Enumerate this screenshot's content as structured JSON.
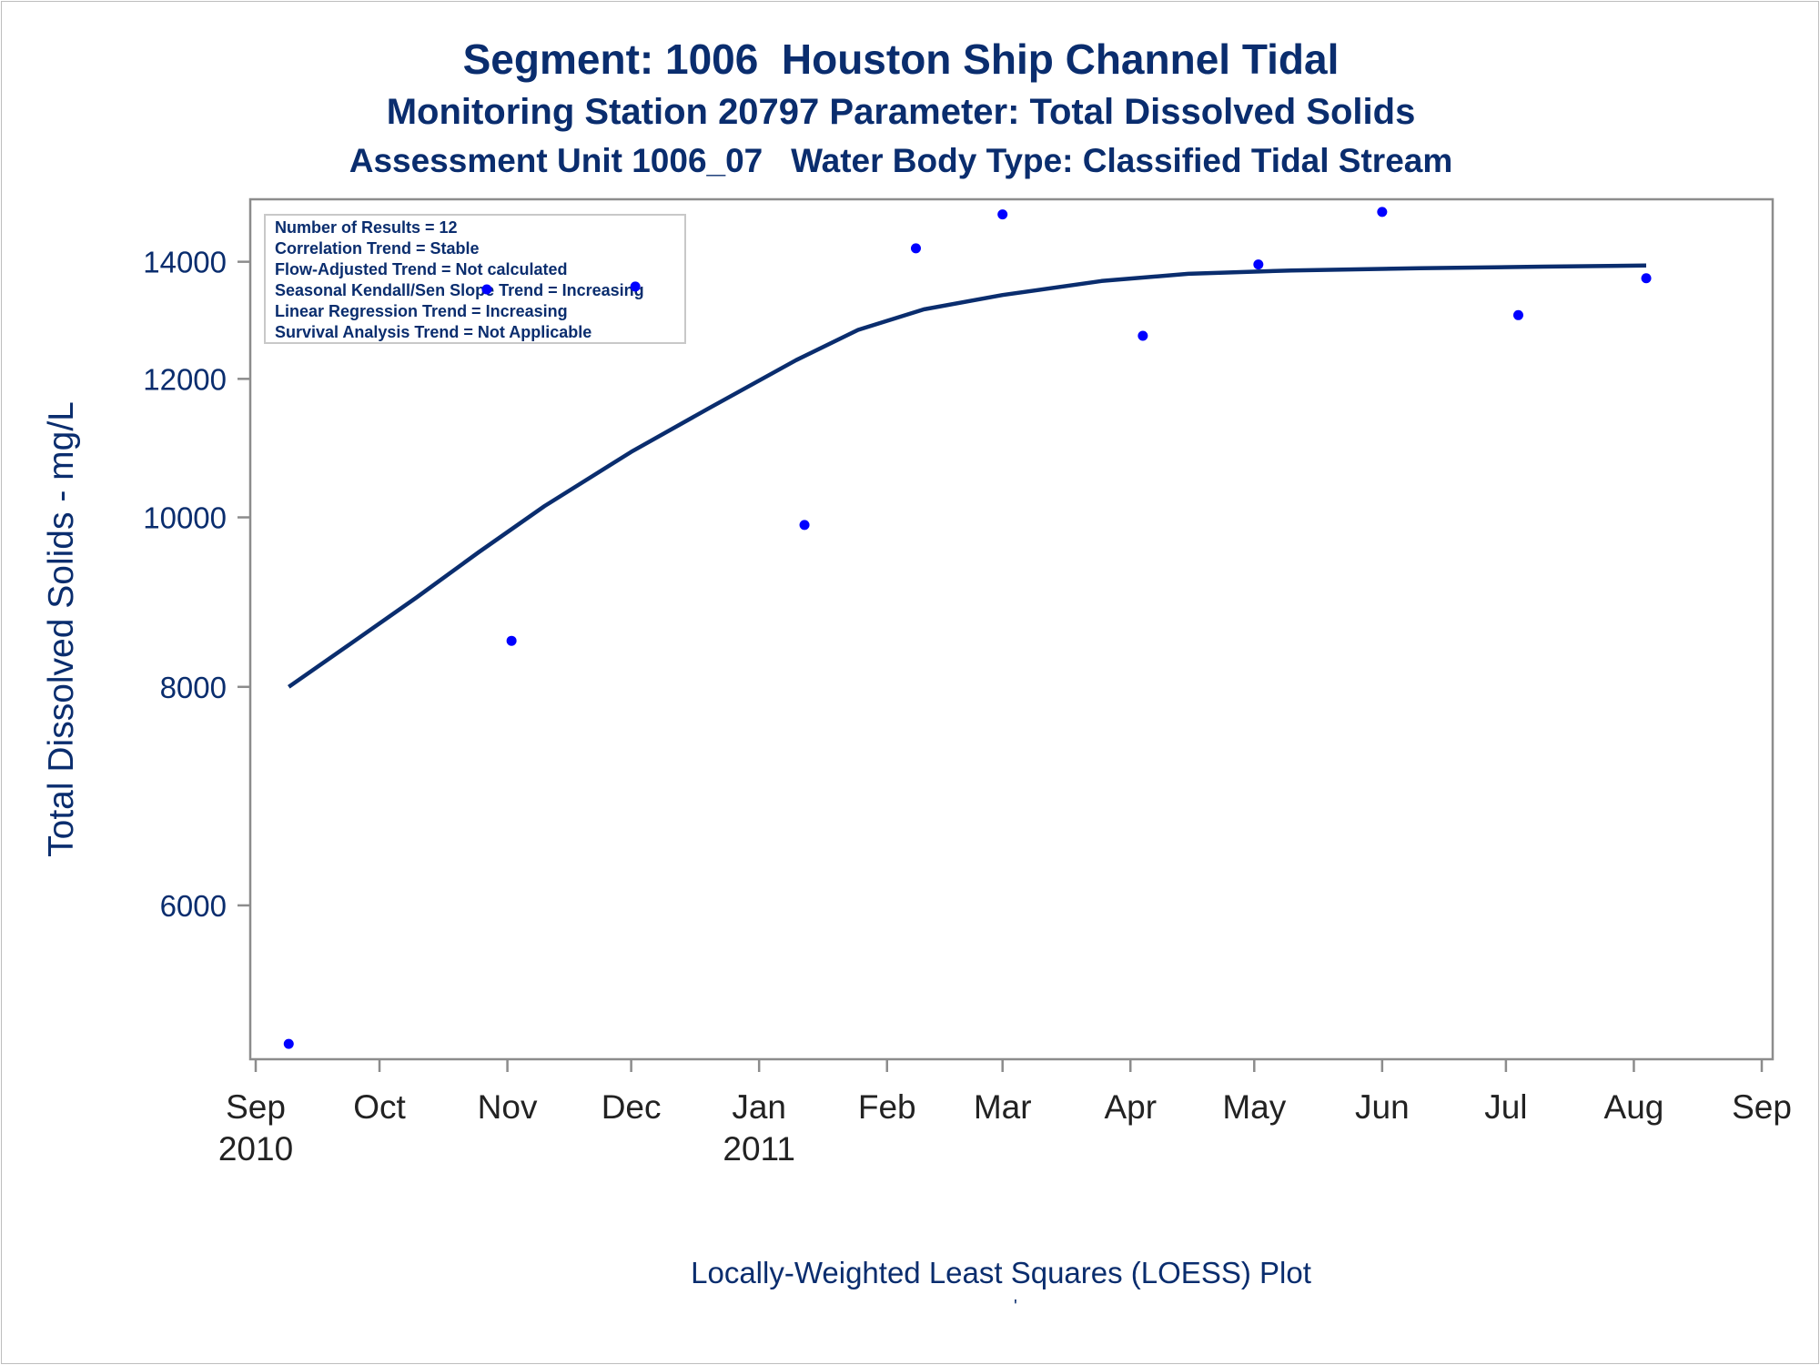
{
  "titles": {
    "line1": "Segment: 1006  Houston Ship Channel Tidal",
    "line2": "Monitoring Station 20797 Parameter: Total Dissolved Solids",
    "line3": "Assessment Unit 1006_07   Water Body Type: Classified Tidal Stream"
  },
  "footnote": "Locally-Weighted Least Squares (LOESS) Plot",
  "footnote_mark": "'",
  "colors": {
    "text": "#0a2d6e",
    "points": "#0000ff",
    "line": "#0a2d6e",
    "axis": "#8c8c8c"
  },
  "chart_data": {
    "type": "scatter",
    "ylabel": "Total Dissolved Solids - mg/L",
    "xlabel": "",
    "y_scale": "log",
    "ylim": [
      4900,
      15200
    ],
    "xlim": [
      "2010-09-01",
      "2011-09-01"
    ],
    "yticks": [
      6000,
      8000,
      10000,
      12000,
      14000
    ],
    "xticks": [
      {
        "date": "2010-09-01",
        "label": "Sep",
        "year": "2010"
      },
      {
        "date": "2010-10-01",
        "label": "Oct",
        "year": ""
      },
      {
        "date": "2010-11-01",
        "label": "Nov",
        "year": ""
      },
      {
        "date": "2010-12-01",
        "label": "Dec",
        "year": ""
      },
      {
        "date": "2011-01-01",
        "label": "Jan",
        "year": "2011"
      },
      {
        "date": "2011-02-01",
        "label": "Feb",
        "year": ""
      },
      {
        "date": "2011-03-01",
        "label": "Mar",
        "year": ""
      },
      {
        "date": "2011-04-01",
        "label": "Apr",
        "year": ""
      },
      {
        "date": "2011-05-01",
        "label": "May",
        "year": ""
      },
      {
        "date": "2011-06-01",
        "label": "Jun",
        "year": ""
      },
      {
        "date": "2011-07-01",
        "label": "Jul",
        "year": ""
      },
      {
        "date": "2011-08-01",
        "label": "Aug",
        "year": ""
      },
      {
        "date": "2011-09-01",
        "label": "Sep",
        "year": ""
      }
    ],
    "points": [
      {
        "x": "2010-09-09",
        "y": 5000
      },
      {
        "x": "2010-10-27",
        "y": 13500
      },
      {
        "x": "2010-11-02",
        "y": 8500
      },
      {
        "x": "2010-12-02",
        "y": 13550
      },
      {
        "x": "2011-01-12",
        "y": 9900
      },
      {
        "x": "2011-02-08",
        "y": 14250
      },
      {
        "x": "2011-03-01",
        "y": 14900
      },
      {
        "x": "2011-04-04",
        "y": 12700
      },
      {
        "x": "2011-05-02",
        "y": 13950
      },
      {
        "x": "2011-06-01",
        "y": 14950
      },
      {
        "x": "2011-07-04",
        "y": 13050
      },
      {
        "x": "2011-08-04",
        "y": 13700
      }
    ],
    "loess": [
      {
        "x": "2010-09-09",
        "y": 8000
      },
      {
        "x": "2010-09-25",
        "y": 8500
      },
      {
        "x": "2010-10-10",
        "y": 9000
      },
      {
        "x": "2010-10-25",
        "y": 9550
      },
      {
        "x": "2010-11-10",
        "y": 10150
      },
      {
        "x": "2010-12-01",
        "y": 10900
      },
      {
        "x": "2010-12-20",
        "y": 11550
      },
      {
        "x": "2011-01-10",
        "y": 12300
      },
      {
        "x": "2011-01-25",
        "y": 12800
      },
      {
        "x": "2011-02-10",
        "y": 13150
      },
      {
        "x": "2011-03-01",
        "y": 13400
      },
      {
        "x": "2011-03-25",
        "y": 13650
      },
      {
        "x": "2011-04-15",
        "y": 13780
      },
      {
        "x": "2011-05-10",
        "y": 13840
      },
      {
        "x": "2011-06-10",
        "y": 13880
      },
      {
        "x": "2011-07-10",
        "y": 13910
      },
      {
        "x": "2011-08-04",
        "y": 13930
      }
    ],
    "legend_box": {
      "placement": "top-left",
      "lines": [
        "Number of Results = 12",
        "Correlation Trend = Stable",
        "Flow-Adjusted Trend = Not calculated",
        "Seasonal Kendall/Sen Slope Trend = Increasing",
        "Linear Regression Trend = Increasing",
        "Survival Analysis Trend = Not Applicable"
      ]
    }
  }
}
